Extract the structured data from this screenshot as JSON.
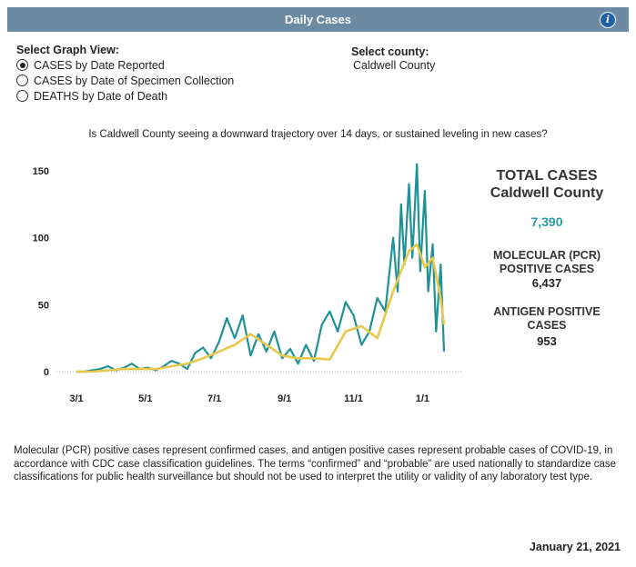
{
  "header": {
    "title": "Daily  Cases",
    "info_icon": "info-icon",
    "info_glyph": "i"
  },
  "graph_view": {
    "title": "Select Graph View:",
    "options": [
      {
        "label": "CASES by Date Reported",
        "selected": true
      },
      {
        "label": "CASES by Date of Specimen Collection",
        "selected": false
      },
      {
        "label": "DEATHS by Date of Death",
        "selected": false
      }
    ]
  },
  "county": {
    "title": "Select county:",
    "value": "Caldwell County"
  },
  "question": "Is Caldwell County seeing a downward trajectory over 14 days, or sustained leveling in new cases?",
  "colors": {
    "header": "#6d8aa3",
    "daily": "#1f9197",
    "average": "#e8c84a",
    "total": "#2e99a8"
  },
  "chart_data": {
    "type": "line",
    "x_axis": {
      "ticks": [
        "3/1",
        "5/1",
        "7/1",
        "9/1",
        "11/1",
        "1/1"
      ],
      "range": [
        "2020-03-01",
        "2021-01-20"
      ]
    },
    "y_axis": {
      "ticks": [
        "0",
        "50",
        "100",
        "150"
      ],
      "range": [
        0,
        150
      ]
    },
    "grid": false,
    "series": [
      {
        "style": "daily",
        "x": [
          "2020-03-01",
          "2020-03-08",
          "2020-03-15",
          "2020-03-22",
          "2020-03-29",
          "2020-04-05",
          "2020-04-12",
          "2020-04-19",
          "2020-04-26",
          "2020-05-03",
          "2020-05-10",
          "2020-05-17",
          "2020-05-24",
          "2020-05-31",
          "2020-06-07",
          "2020-06-14",
          "2020-06-21",
          "2020-06-28",
          "2020-07-05",
          "2020-07-12",
          "2020-07-19",
          "2020-07-26",
          "2020-08-02",
          "2020-08-09",
          "2020-08-16",
          "2020-08-23",
          "2020-08-30",
          "2020-09-06",
          "2020-09-13",
          "2020-09-20",
          "2020-09-27",
          "2020-10-04",
          "2020-10-11",
          "2020-10-18",
          "2020-10-25",
          "2020-11-01",
          "2020-11-08",
          "2020-11-15",
          "2020-11-22",
          "2020-11-29",
          "2020-12-06",
          "2020-12-10",
          "2020-12-13",
          "2020-12-16",
          "2020-12-20",
          "2020-12-23",
          "2020-12-27",
          "2020-12-30",
          "2021-01-03",
          "2021-01-06",
          "2021-01-10",
          "2021-01-13",
          "2021-01-17",
          "2021-01-20"
        ],
        "values": [
          0,
          0,
          1,
          2,
          4,
          1,
          3,
          6,
          2,
          3,
          1,
          4,
          8,
          6,
          2,
          14,
          18,
          10,
          22,
          40,
          25,
          42,
          12,
          28,
          15,
          30,
          10,
          17,
          6,
          20,
          8,
          35,
          45,
          30,
          52,
          42,
          20,
          30,
          55,
          45,
          100,
          60,
          125,
          80,
          140,
          85,
          155,
          75,
          135,
          60,
          95,
          30,
          80,
          15
        ]
      },
      {
        "style": "average",
        "x": [
          "2020-03-01",
          "2020-03-15",
          "2020-03-29",
          "2020-04-12",
          "2020-04-26",
          "2020-05-10",
          "2020-05-24",
          "2020-06-07",
          "2020-06-21",
          "2020-07-05",
          "2020-07-19",
          "2020-08-02",
          "2020-08-16",
          "2020-08-30",
          "2020-09-13",
          "2020-09-27",
          "2020-10-11",
          "2020-10-25",
          "2020-11-08",
          "2020-11-22",
          "2020-12-06",
          "2020-12-13",
          "2020-12-20",
          "2020-12-27",
          "2021-01-03",
          "2021-01-10",
          "2021-01-17",
          "2021-01-20"
        ],
        "values": [
          0,
          0,
          1,
          2,
          2,
          2,
          4,
          6,
          10,
          15,
          20,
          28,
          20,
          12,
          10,
          10,
          9,
          30,
          34,
          25,
          60,
          75,
          90,
          95,
          78,
          85,
          55,
          35
        ]
      }
    ]
  },
  "stats": {
    "total_title": "TOTAL CASES",
    "total_county": "Caldwell County",
    "total_value": "7,390",
    "pcr_label_1": "MOLECULAR (PCR)",
    "pcr_label_2": "POSITIVE CASES",
    "pcr_value": "6,437",
    "antigen_label_1": "ANTIGEN POSITIVE",
    "antigen_label_2": "CASES",
    "antigen_value": "953"
  },
  "footnote": "Molecular (PCR) positive cases represent confirmed cases, and antigen positive cases represent probable cases of COVID-19, in accordance with CDC case classification guidelines. The terms “confirmed” and “probable” are used nationally to standardize case classifications for public health surveillance but should not be used to interpret the utility or validity of any laboratory test type.",
  "date": "January 21, 2021"
}
